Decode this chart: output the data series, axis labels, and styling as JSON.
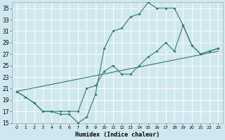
{
  "xlabel": "Humidex (Indice chaleur)",
  "bg_color": "#cfe8f0",
  "grid_color": "#ffffff",
  "line_color": "#2d7d6e",
  "xlim": [
    -0.5,
    23.5
  ],
  "ylim": [
    15,
    36
  ],
  "yticks": [
    15,
    17,
    19,
    21,
    23,
    25,
    27,
    29,
    31,
    33,
    35
  ],
  "xticks": [
    0,
    1,
    2,
    3,
    4,
    5,
    6,
    7,
    8,
    9,
    10,
    11,
    12,
    13,
    14,
    15,
    16,
    17,
    18,
    19,
    20,
    21,
    22,
    23
  ],
  "line1_x": [
    0,
    1,
    2,
    3,
    4,
    5,
    6,
    7,
    8,
    9,
    10,
    11,
    12,
    13,
    14,
    15,
    16,
    17,
    18,
    19,
    20,
    21,
    22,
    23
  ],
  "line1_y": [
    20.5,
    19.5,
    18.5,
    17.0,
    17.0,
    16.5,
    16.5,
    15.0,
    16.0,
    20.0,
    28.0,
    31.0,
    31.5,
    33.5,
    34.0,
    36.0,
    35.0,
    35.0,
    35.0,
    32.0,
    28.5,
    27.0,
    27.5,
    28.0
  ],
  "line2_x": [
    0,
    2,
    3,
    4,
    5,
    6,
    7,
    8,
    9,
    10,
    11,
    12,
    13,
    14,
    15,
    16,
    17,
    18,
    19,
    20,
    21,
    22,
    23
  ],
  "line2_y": [
    20.5,
    18.5,
    17.0,
    17.0,
    17.0,
    17.0,
    17.0,
    21.0,
    21.5,
    24.0,
    25.0,
    23.5,
    23.5,
    25.0,
    26.5,
    27.5,
    29.0,
    27.5,
    32.0,
    28.5,
    27.0,
    27.5,
    28.0
  ],
  "line3_x": [
    0,
    23
  ],
  "line3_y": [
    20.5,
    27.5
  ]
}
